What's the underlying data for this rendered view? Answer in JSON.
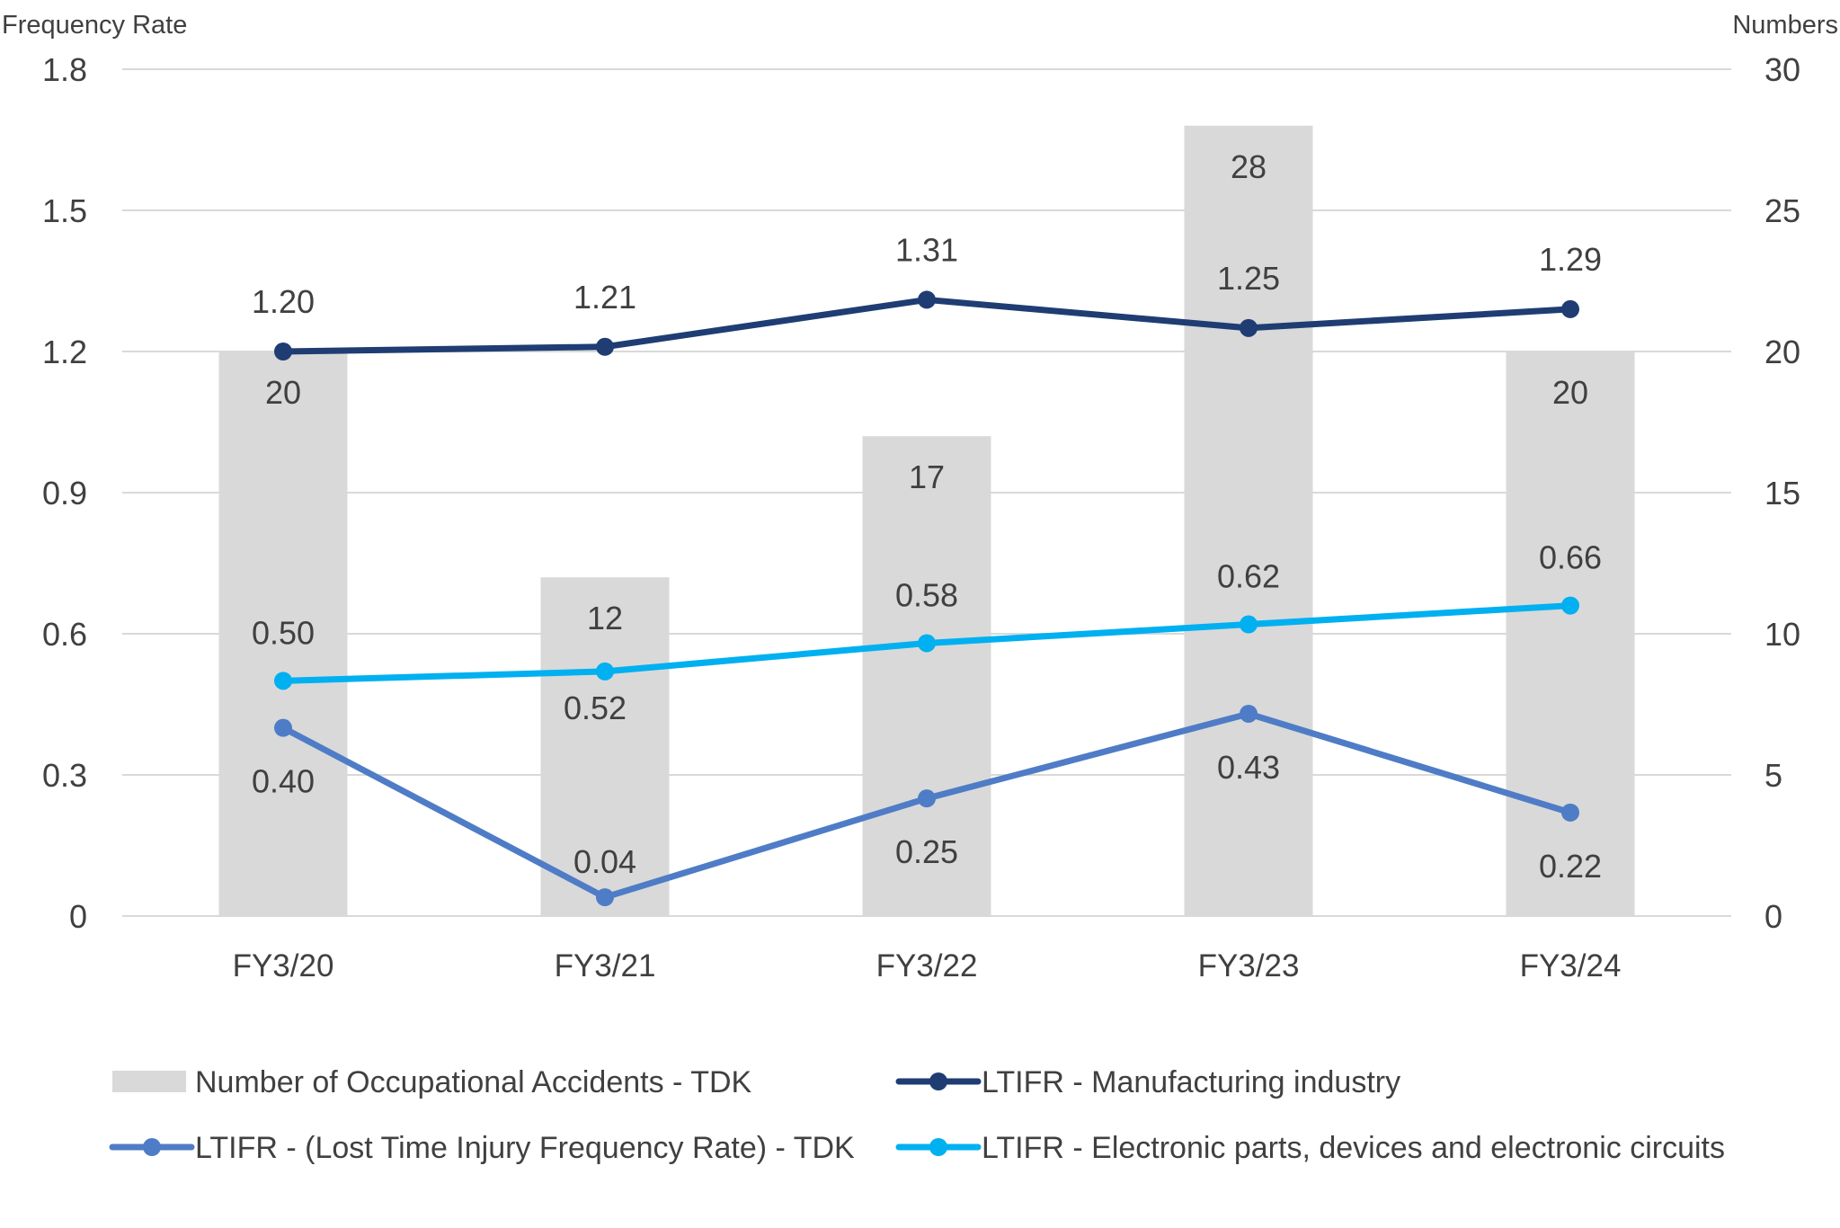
{
  "chart_data": {
    "type": "bar",
    "categories": [
      "FY3/20",
      "FY3/21",
      "FY3/22",
      "FY3/23",
      "FY3/24"
    ],
    "left_axis": {
      "title": "Frequency Rate",
      "range": [
        0,
        1.8
      ],
      "ticks": [
        "0",
        "0.3",
        "0.6",
        "0.9",
        "1.2",
        "1.5",
        "1.8"
      ],
      "tick_values": [
        0,
        0.3,
        0.6,
        0.9,
        1.2,
        1.5,
        1.8
      ]
    },
    "right_axis": {
      "title": "Numbers",
      "range": [
        0,
        30
      ],
      "ticks": [
        "0",
        "5",
        "10",
        "15",
        "20",
        "25",
        "30"
      ],
      "tick_values": [
        0,
        5,
        10,
        15,
        20,
        25,
        30
      ]
    },
    "bars": {
      "name": "Number of Occupational Accidents - TDK",
      "axis": "right",
      "color": "#d9d9d9",
      "values": [
        20,
        12,
        17,
        28,
        20
      ],
      "labels": [
        "20",
        "12",
        "17",
        "28",
        "20"
      ]
    },
    "series": [
      {
        "name": "LTIFR - Manufacturing industry",
        "axis": "left",
        "color": "#1f3d73",
        "values": [
          1.2,
          1.21,
          1.31,
          1.25,
          1.29
        ],
        "labels": [
          "1.20",
          "1.21",
          "1.31",
          "1.25",
          "1.29"
        ]
      },
      {
        "name": "LTIFR - Electronic parts, devices and electronic circuits",
        "axis": "left",
        "color": "#00b0f0",
        "values": [
          0.5,
          0.52,
          0.58,
          0.62,
          0.66
        ],
        "labels": [
          "0.50",
          "0.52",
          "0.58",
          "0.62",
          "0.66"
        ]
      },
      {
        "name": "LTIFR - (Lost Time Injury Frequency Rate) - TDK",
        "axis": "left",
        "color": "#4f7cc6",
        "values": [
          0.4,
          0.04,
          0.25,
          0.43,
          0.22
        ],
        "labels": [
          "0.40",
          "0.04",
          "0.25",
          "0.43",
          "0.22"
        ]
      }
    ],
    "legend": [
      "Number of Occupational Accidents - TDK",
      "LTIFR - Manufacturing industry",
      "LTIFR - (Lost Time Injury Frequency Rate) - TDK",
      "LTIFR - Electronic parts, devices and electronic circuits"
    ],
    "legend_placement": "bottom",
    "grid": true
  }
}
